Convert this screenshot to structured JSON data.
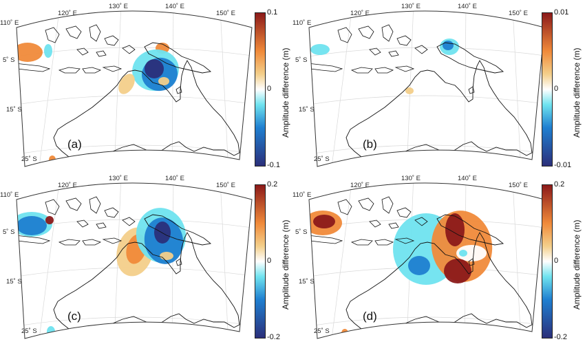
{
  "panels": [
    {
      "id": "a",
      "label": "(a)",
      "lon_labels": [
        "110˚ E",
        "120˚ E",
        "130˚ E",
        "140˚ E",
        "150˚ E"
      ],
      "lat_labels": [
        "5˚ S",
        "15˚ S",
        "25˚ S"
      ],
      "colorbar": {
        "max": "0.1",
        "mid": "0",
        "min": "-0.1",
        "title": "Amplitude difference (m)"
      }
    },
    {
      "id": "b",
      "label": "(b)",
      "lon_labels": [
        "110˚ E",
        "120˚ E",
        "130˚ E",
        "140˚ E",
        "150˚ E"
      ],
      "lat_labels": [
        "5˚ S",
        "15˚ S",
        "25˚ S"
      ],
      "colorbar": {
        "max": "0.01",
        "mid": "0",
        "min": "-0.01",
        "title": "Amplitude difference (m)"
      }
    },
    {
      "id": "c",
      "label": "(c)",
      "lon_labels": [
        "110˚ E",
        "120˚ E",
        "130˚ E",
        "140˚ E",
        "150˚ E"
      ],
      "lat_labels": [
        "5˚ S",
        "15˚ S",
        "25˚ S"
      ],
      "colorbar": {
        "max": "0.2",
        "mid": "0",
        "min": "-0.2",
        "title": "Amplitude difference (m)"
      }
    },
    {
      "id": "d",
      "label": "(d)",
      "lon_labels": [
        "110˚ E",
        "120˚ E",
        "130˚ E",
        "140˚ E",
        "150˚ E"
      ],
      "lat_labels": [
        "5˚ S",
        "15˚ S",
        "25˚ S"
      ],
      "colorbar": {
        "max": "0.2",
        "mid": "0",
        "min": "-0.2",
        "title": "Amplitude difference (m)"
      }
    }
  ],
  "colors": {
    "neg_dark": "#2b2f7a",
    "neg": "#1f7fd0",
    "neg_light": "#6fe3ef",
    "zero": "#ffffff",
    "pos_light": "#f3cf8a",
    "pos": "#f08a3a",
    "pos_dark": "#8b1a1a",
    "coast": "#111111",
    "grid": "#d8d8d8"
  }
}
